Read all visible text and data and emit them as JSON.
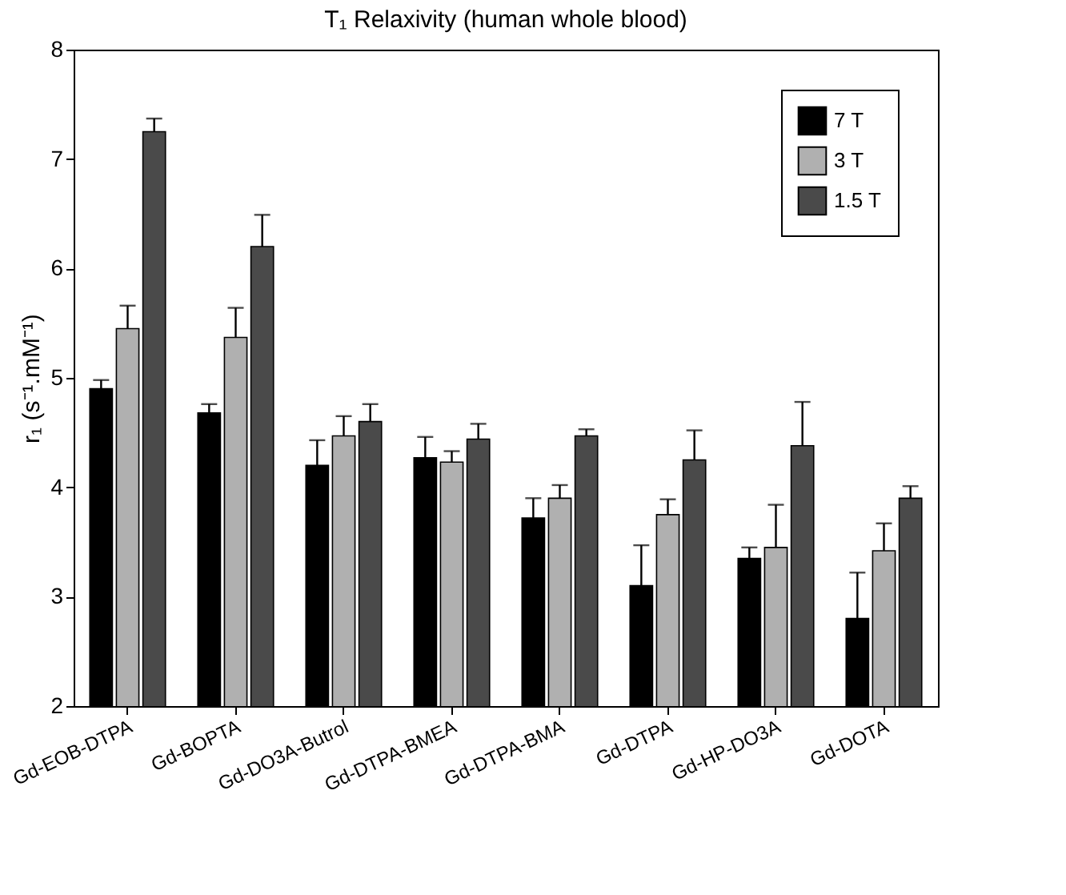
{
  "chart_data": {
    "type": "bar",
    "title": "T₁ Relaxivity (human whole blood)",
    "ylabel": "r₁ (s⁻¹.mM⁻¹)",
    "categories": [
      "Gd-EOB-DTPA",
      "Gd-BOPTA",
      "Gd-DO3A-Butrol",
      "Gd-DTPA-BMEA",
      "Gd-DTPA-BMA",
      "Gd-DTPA",
      "Gd-HP-DO3A",
      "Gd-DOTA"
    ],
    "series": [
      {
        "name": "7 T",
        "color": "#000000",
        "values": [
          4.9,
          4.68,
          4.2,
          4.27,
          3.72,
          3.1,
          3.35,
          2.8
        ],
        "errors": [
          [
            4.9,
            4.98
          ],
          [
            4.68,
            4.76
          ],
          [
            4.2,
            4.43
          ],
          [
            4.27,
            4.46
          ],
          [
            3.72,
            3.9
          ],
          [
            3.1,
            3.47
          ],
          [
            3.35,
            3.45
          ],
          [
            2.8,
            3.22
          ]
        ]
      },
      {
        "name": "3 T",
        "color": "#b0b0b0",
        "values": [
          5.45,
          5.37,
          4.47,
          4.23,
          3.9,
          3.75,
          3.45,
          3.42
        ],
        "errors": [
          [
            5.45,
            5.66
          ],
          [
            5.37,
            5.64
          ],
          [
            4.47,
            4.65
          ],
          [
            4.23,
            4.33
          ],
          [
            3.9,
            4.02
          ],
          [
            3.75,
            3.89
          ],
          [
            3.45,
            3.84
          ],
          [
            3.42,
            3.67
          ]
        ]
      },
      {
        "name": "1.5 T",
        "color": "#4a4a4a",
        "values": [
          7.25,
          6.2,
          4.6,
          4.44,
          4.47,
          4.25,
          4.38,
          3.9
        ],
        "errors": [
          [
            7.25,
            7.37
          ],
          [
            6.2,
            6.49
          ],
          [
            4.6,
            4.76
          ],
          [
            4.44,
            4.58
          ],
          [
            4.47,
            4.53
          ],
          [
            4.25,
            4.52
          ],
          [
            4.38,
            4.78
          ],
          [
            3.9,
            4.01
          ]
        ]
      }
    ],
    "ylim": [
      2,
      8
    ],
    "yticks": [
      2,
      3,
      4,
      5,
      6,
      7,
      8
    ],
    "grid": false,
    "legend": "top right"
  }
}
